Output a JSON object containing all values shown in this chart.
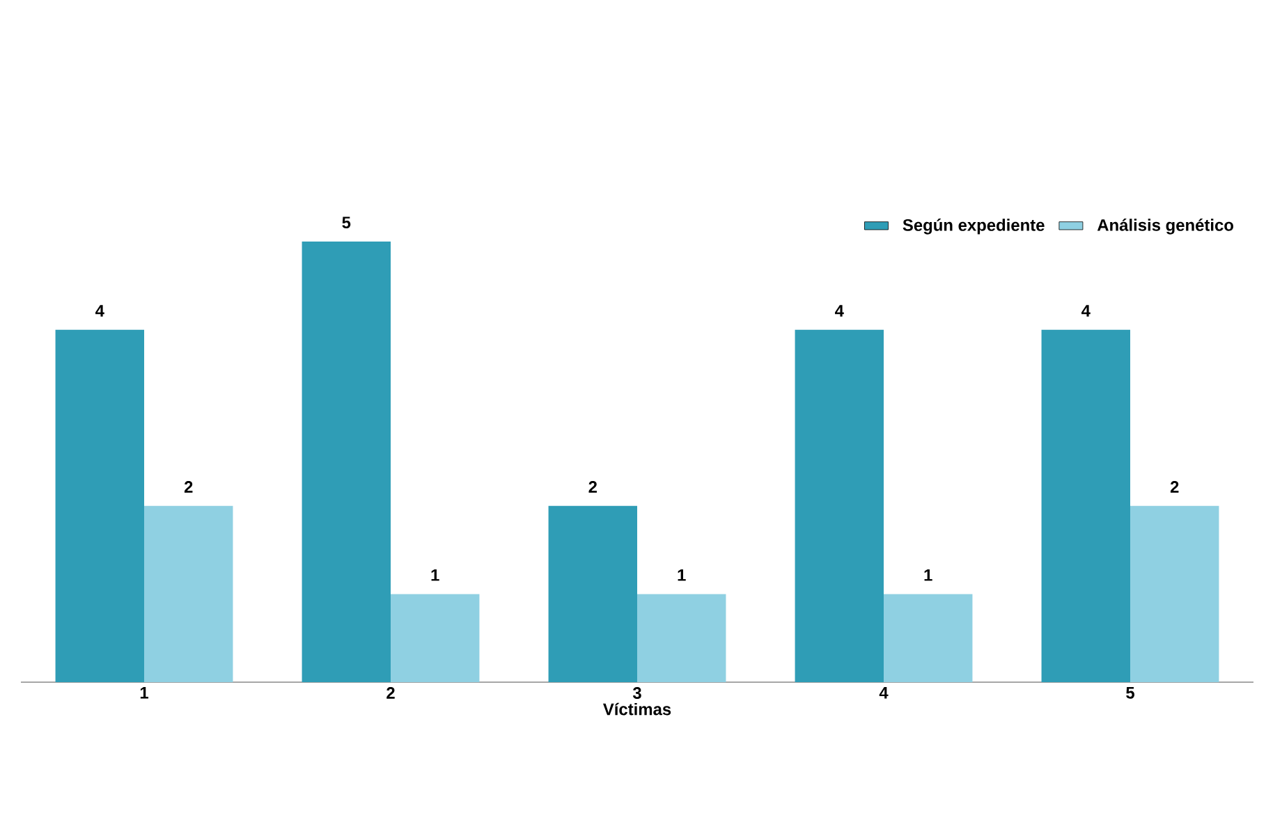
{
  "chart_data": {
    "type": "bar",
    "xlabel": "Víctimas",
    "categories": [
      "1",
      "2",
      "3",
      "4",
      "5"
    ],
    "series": [
      {
        "name": "Según expediente",
        "color": "#2f9db6",
        "values": [
          4,
          5,
          2,
          4,
          4
        ]
      },
      {
        "name": "Análisis genético",
        "color": "#8fd0e2",
        "values": [
          2,
          1,
          1,
          1,
          2
        ]
      }
    ],
    "tick_labels": "x",
    "data_labels": true,
    "legend": "top right"
  }
}
